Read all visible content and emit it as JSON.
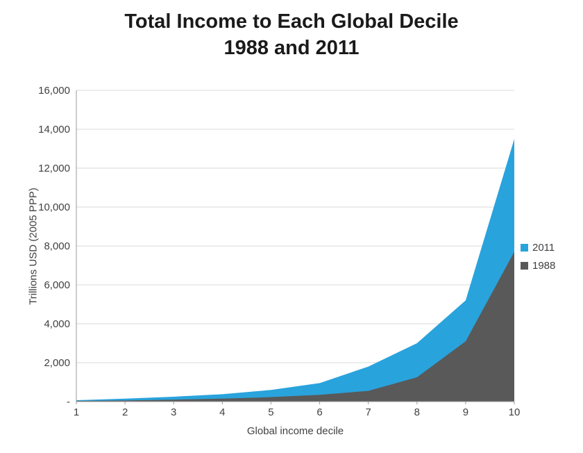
{
  "chart_data": {
    "type": "area",
    "title_line1": "Total Income to Each Global Decile",
    "title_line2": "1988 and 2011",
    "xlabel": "Global income decile",
    "ylabel": "Trillions USD (2005 PPP)",
    "categories": [
      1,
      2,
      3,
      4,
      5,
      6,
      7,
      8,
      9,
      10
    ],
    "series": [
      {
        "name": "2011",
        "color": "#29A3DC",
        "values": [
          70,
          150,
          250,
          380,
          600,
          950,
          1800,
          3000,
          5200,
          13500
        ]
      },
      {
        "name": "1988",
        "color": "#595959",
        "values": [
          35,
          60,
          100,
          150,
          230,
          350,
          550,
          1250,
          3100,
          7700
        ]
      }
    ],
    "ylim": [
      0,
      16000
    ],
    "y_tick_values": [
      0,
      2000,
      4000,
      6000,
      8000,
      10000,
      12000,
      14000,
      16000
    ],
    "y_zero_label": "-",
    "grid": true,
    "legend_position": "right",
    "colors": {
      "gridline": "#D9D9D9",
      "axis_line": "#9a9a9a",
      "tick_text": "#404040",
      "title_text": "#1a1a1a"
    }
  }
}
